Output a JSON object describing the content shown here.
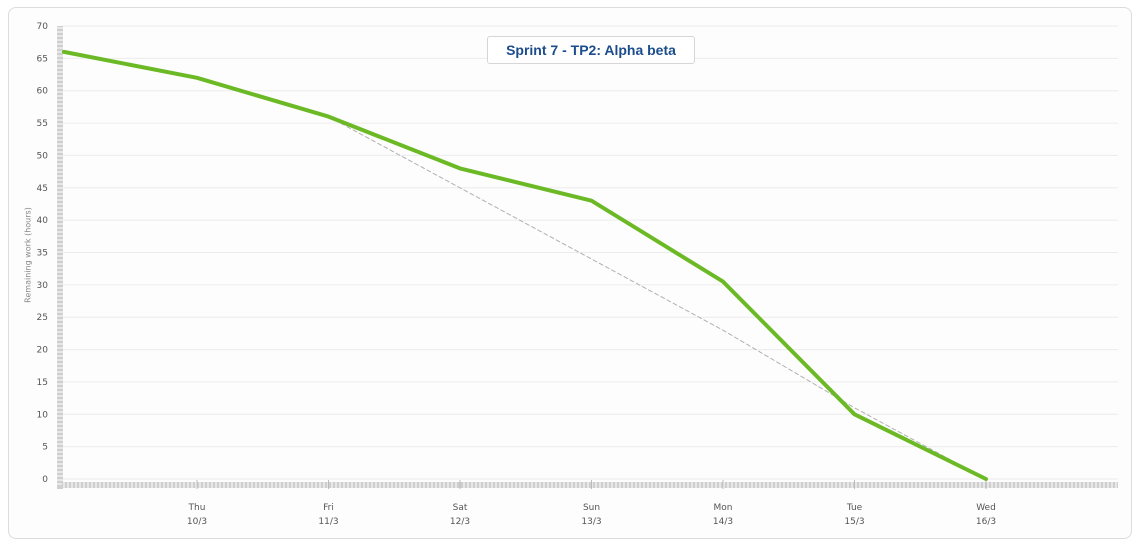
{
  "chart_data": {
    "type": "line",
    "title": "Sprint 7 - TP2: Alpha beta",
    "xlabel": "",
    "ylabel": "Remaining work (hours)",
    "ylim": [
      0,
      70
    ],
    "yticks": [
      "0",
      "5",
      "10",
      "15",
      "20",
      "25",
      "30",
      "35",
      "40",
      "45",
      "50",
      "55",
      "60",
      "65",
      "70"
    ],
    "grid": true,
    "legend": "none",
    "categories": [
      {
        "day": "Thu",
        "date": "10/3"
      },
      {
        "day": "Fri",
        "date": "11/3"
      },
      {
        "day": "Sat",
        "date": "12/3"
      },
      {
        "day": "Sun",
        "date": "13/3"
      },
      {
        "day": "Mon",
        "date": "14/3"
      },
      {
        "day": "Tue",
        "date": "15/3"
      },
      {
        "day": "Wed",
        "date": "16/3"
      }
    ],
    "series": [
      {
        "role": "actual",
        "color": "#6cb926",
        "style": "solid",
        "points": [
          {
            "x": "start",
            "y": 66
          },
          {
            "x": "Thu 10/3",
            "y": 62
          },
          {
            "x": "Fri 11/3",
            "y": 56
          },
          {
            "x": "Sat 12/3",
            "y": 48
          },
          {
            "x": "Sun 13/3",
            "y": 43
          },
          {
            "x": "Mon 14/3",
            "y": 30.5
          },
          {
            "x": "Tue 15/3",
            "y": 10
          },
          {
            "x": "Wed 16/3",
            "y": 0
          }
        ]
      },
      {
        "role": "ideal",
        "color": "#b0b0b0",
        "style": "dashed",
        "points": [
          {
            "x": "Fri 11/3",
            "y": 56
          },
          {
            "x": "Sat 12/3",
            "y": 45
          },
          {
            "x": "Sun 13/3",
            "y": 34
          },
          {
            "x": "Mon 14/3",
            "y": 23
          },
          {
            "x": "Tue 15/3",
            "y": 11
          },
          {
            "x": "Wed 16/3",
            "y": 0
          }
        ]
      }
    ]
  }
}
